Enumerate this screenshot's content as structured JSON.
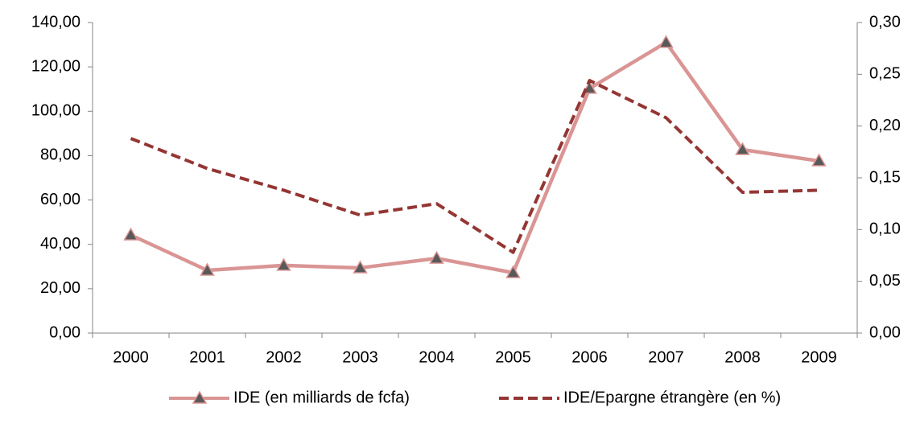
{
  "chart_data": {
    "type": "line",
    "categories": [
      "2000",
      "2001",
      "2002",
      "2003",
      "2004",
      "2005",
      "2006",
      "2007",
      "2008",
      "2009"
    ],
    "series": [
      {
        "name": "IDE (en milliards de fcfa)",
        "color": "#d99594",
        "marker_color": "#595959",
        "dashed": false,
        "values": [
          44.2,
          28.3,
          30.5,
          29.4,
          33.7,
          27.2,
          110.3,
          131.0,
          82.7,
          77.6
        ]
      },
      {
        "name": "IDE/Epargne étrangère (en %)",
        "color": "#943634",
        "dashed": true,
        "axis": "y2",
        "values": [
          0.188,
          0.159,
          0.138,
          0.114,
          0.125,
          0.078,
          0.244,
          0.208,
          0.136,
          0.138
        ]
      }
    ],
    "ylim": [
      0,
      140
    ],
    "yticks": [
      {
        "value": 0,
        "label": "0,00"
      },
      {
        "value": 20,
        "label": "20,00"
      },
      {
        "value": 40,
        "label": "40,00"
      },
      {
        "value": 60,
        "label": "60,00"
      },
      {
        "value": 80,
        "label": "80,00"
      },
      {
        "value": 100,
        "label": "100,00"
      },
      {
        "value": 120,
        "label": "120,00"
      },
      {
        "value": 140,
        "label": "140,00"
      }
    ],
    "y2lim": [
      0,
      0.3
    ],
    "y2ticks": [
      {
        "value": 0,
        "label": "0,00"
      },
      {
        "value": 0.05,
        "label": "0,05"
      },
      {
        "value": 0.1,
        "label": "0,10"
      },
      {
        "value": 0.15,
        "label": "0,15"
      },
      {
        "value": 0.2,
        "label": "0,20"
      },
      {
        "value": 0.25,
        "label": "0,25"
      },
      {
        "value": 0.3,
        "label": "0,30"
      }
    ],
    "grid": false,
    "legend": "bottom"
  }
}
